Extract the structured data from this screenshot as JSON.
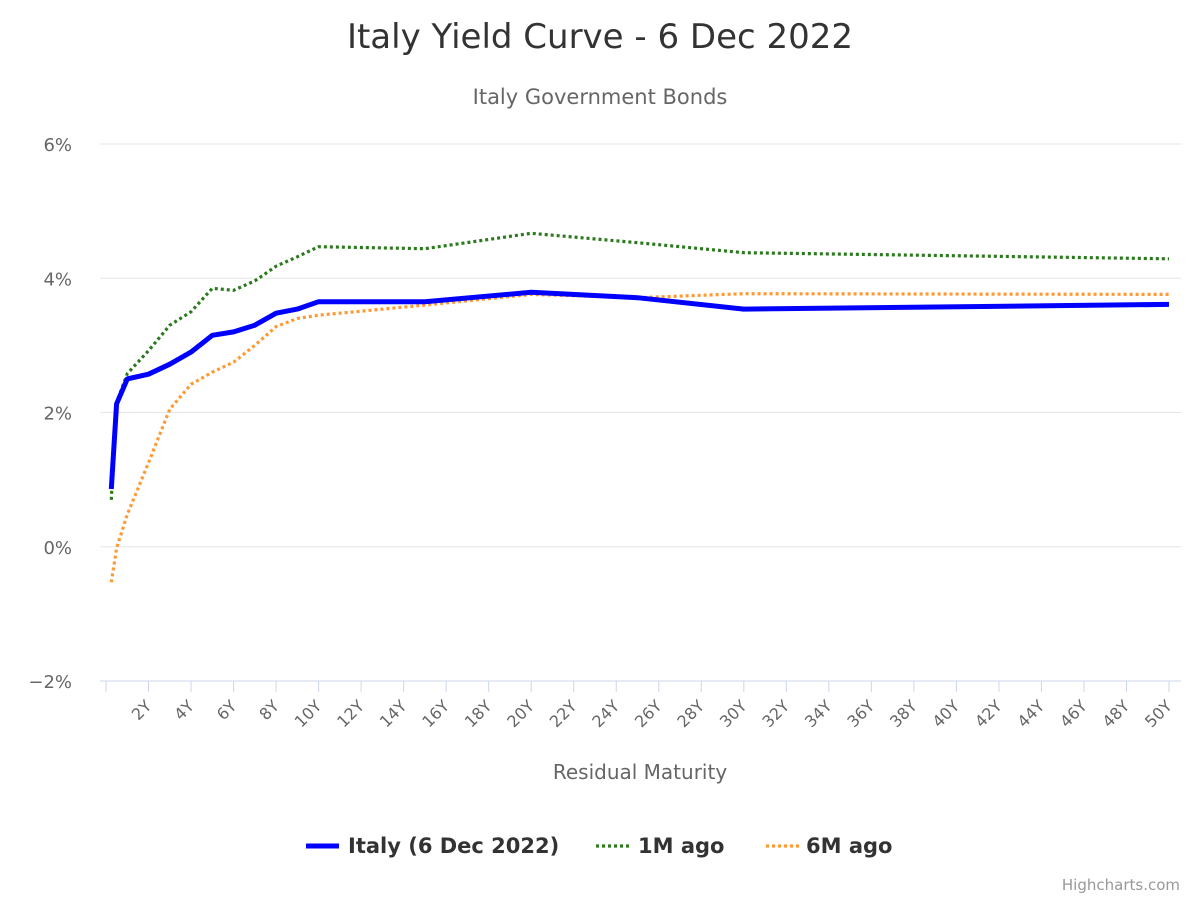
{
  "chart_data": {
    "type": "line",
    "title": "Italy Yield Curve - 6 Dec 2022",
    "subtitle": "Italy Government Bonds",
    "xlabel": "Residual Maturity",
    "ylabel": "",
    "xlim": [
      0,
      50
    ],
    "ylim": [
      -2,
      6
    ],
    "y_ticks": [
      -2,
      0,
      2,
      4,
      6
    ],
    "y_tick_labels": [
      "−2%",
      "0%",
      "2%",
      "4%",
      "6%"
    ],
    "x_ticks": [
      2,
      4,
      6,
      8,
      10,
      12,
      14,
      16,
      18,
      20,
      22,
      24,
      26,
      28,
      30,
      32,
      34,
      36,
      38,
      40,
      42,
      44,
      46,
      48,
      50
    ],
    "x_tick_labels": [
      "2Y",
      "4Y",
      "6Y",
      "8Y",
      "10Y",
      "12Y",
      "14Y",
      "16Y",
      "18Y",
      "20Y",
      "22Y",
      "24Y",
      "26Y",
      "28Y",
      "30Y",
      "32Y",
      "34Y",
      "36Y",
      "38Y",
      "40Y",
      "42Y",
      "44Y",
      "46Y",
      "48Y",
      "50Y"
    ],
    "grid": true,
    "legend_position": "bottom-center",
    "series": [
      {
        "name": "Italy (6 Dec 2022)",
        "color": "#0000ff",
        "style": "solid",
        "x": [
          0.25,
          0.5,
          1,
          2,
          3,
          4,
          5,
          6,
          7,
          8,
          9,
          10,
          15,
          20,
          25,
          30,
          50
        ],
        "y": [
          0.86,
          2.13,
          2.5,
          2.57,
          2.72,
          2.9,
          3.15,
          3.2,
          3.3,
          3.48,
          3.54,
          3.65,
          3.65,
          3.79,
          3.71,
          3.54,
          3.61
        ]
      },
      {
        "name": "1M ago",
        "color": "#2b7a1e",
        "style": "dotted",
        "x": [
          0.25,
          0.5,
          1,
          2,
          3,
          4,
          5,
          6,
          7,
          8,
          9,
          10,
          15,
          20,
          25,
          30,
          50
        ],
        "y": [
          0.7,
          2.15,
          2.58,
          2.92,
          3.3,
          3.5,
          3.85,
          3.82,
          3.96,
          4.18,
          4.32,
          4.47,
          4.44,
          4.67,
          4.53,
          4.38,
          4.29
        ]
      },
      {
        "name": "6M ago",
        "color": "#ff9933",
        "style": "dotted",
        "x": [
          0.25,
          0.5,
          1,
          2,
          3,
          4,
          5,
          6,
          7,
          8,
          9,
          10,
          15,
          20,
          25,
          30,
          50
        ],
        "y": [
          -0.53,
          -0.02,
          0.48,
          1.25,
          2.05,
          2.42,
          2.6,
          2.75,
          3.0,
          3.28,
          3.4,
          3.45,
          3.6,
          3.76,
          3.71,
          3.77,
          3.76
        ]
      }
    ],
    "credits": "Highcharts.com"
  }
}
